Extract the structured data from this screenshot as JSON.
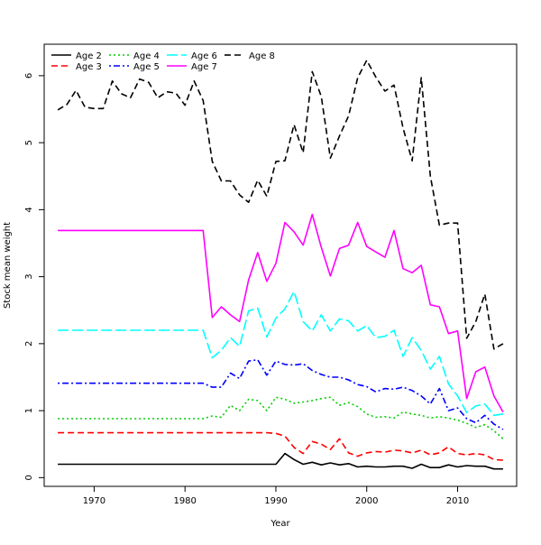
{
  "chart_data": {
    "type": "line",
    "title": "",
    "xlabel": "Year",
    "ylabel": "Stock mean weight",
    "xlim": [
      1964.5,
      2016.5
    ],
    "ylim": [
      -0.13,
      6.47
    ],
    "xticks": [
      1970,
      1980,
      1990,
      2000,
      2010
    ],
    "yticks": [
      0,
      1,
      2,
      3,
      4,
      5,
      6
    ],
    "grid": false,
    "legend_position": "top-left",
    "x": [
      1966,
      1967,
      1968,
      1969,
      1970,
      1971,
      1972,
      1973,
      1974,
      1975,
      1976,
      1977,
      1978,
      1979,
      1980,
      1981,
      1982,
      1983,
      1984,
      1985,
      1986,
      1987,
      1988,
      1989,
      1990,
      1991,
      1992,
      1993,
      1994,
      1995,
      1996,
      1997,
      1998,
      1999,
      2000,
      2001,
      2002,
      2003,
      2004,
      2005,
      2006,
      2007,
      2008,
      2009,
      2010,
      2011,
      2012,
      2013,
      2014,
      2015
    ],
    "series": [
      {
        "name": "Age 2",
        "color": "#000000",
        "dash": "solid",
        "values": [
          0.2,
          0.2,
          0.2,
          0.2,
          0.2,
          0.2,
          0.2,
          0.2,
          0.2,
          0.2,
          0.2,
          0.2,
          0.2,
          0.2,
          0.2,
          0.2,
          0.2,
          0.2,
          0.2,
          0.2,
          0.2,
          0.2,
          0.2,
          0.2,
          0.2,
          0.36,
          0.27,
          0.2,
          0.23,
          0.19,
          0.22,
          0.19,
          0.21,
          0.16,
          0.17,
          0.16,
          0.16,
          0.17,
          0.17,
          0.14,
          0.2,
          0.15,
          0.15,
          0.19,
          0.16,
          0.18,
          0.17,
          0.17,
          0.13,
          0.13
        ]
      },
      {
        "name": "Age 3",
        "color": "#ff0000",
        "dash": "dashed",
        "values": [
          0.67,
          0.67,
          0.67,
          0.67,
          0.67,
          0.67,
          0.67,
          0.67,
          0.67,
          0.67,
          0.67,
          0.67,
          0.67,
          0.67,
          0.67,
          0.67,
          0.67,
          0.67,
          0.67,
          0.67,
          0.67,
          0.67,
          0.67,
          0.67,
          0.66,
          0.62,
          0.45,
          0.36,
          0.54,
          0.5,
          0.42,
          0.58,
          0.37,
          0.32,
          0.37,
          0.39,
          0.38,
          0.41,
          0.4,
          0.37,
          0.41,
          0.34,
          0.37,
          0.46,
          0.36,
          0.34,
          0.36,
          0.34,
          0.27,
          0.26
        ]
      },
      {
        "name": "Age 4",
        "color": "#00cd00",
        "dash": "dotted",
        "values": [
          0.88,
          0.88,
          0.88,
          0.88,
          0.88,
          0.88,
          0.88,
          0.88,
          0.88,
          0.88,
          0.88,
          0.88,
          0.88,
          0.88,
          0.88,
          0.88,
          0.88,
          0.92,
          0.9,
          1.08,
          1.0,
          1.17,
          1.15,
          1.0,
          1.2,
          1.17,
          1.11,
          1.13,
          1.15,
          1.18,
          1.2,
          1.08,
          1.12,
          1.06,
          0.95,
          0.9,
          0.91,
          0.89,
          0.98,
          0.95,
          0.93,
          0.89,
          0.91,
          0.89,
          0.86,
          0.81,
          0.75,
          0.79,
          0.7,
          0.58
        ]
      },
      {
        "name": "Age 5",
        "color": "#0000ff",
        "dash": "dotdash",
        "values": [
          1.41,
          1.41,
          1.41,
          1.41,
          1.41,
          1.41,
          1.41,
          1.41,
          1.41,
          1.41,
          1.41,
          1.41,
          1.41,
          1.41,
          1.41,
          1.41,
          1.41,
          1.35,
          1.35,
          1.56,
          1.48,
          1.74,
          1.76,
          1.53,
          1.74,
          1.69,
          1.68,
          1.7,
          1.6,
          1.54,
          1.5,
          1.5,
          1.46,
          1.39,
          1.36,
          1.28,
          1.33,
          1.32,
          1.35,
          1.3,
          1.22,
          1.1,
          1.33,
          1.0,
          1.04,
          0.88,
          0.82,
          0.93,
          0.8,
          0.72
        ]
      },
      {
        "name": "Age 6",
        "color": "#00ffff",
        "dash": "longdash",
        "values": [
          2.2,
          2.2,
          2.2,
          2.2,
          2.2,
          2.2,
          2.2,
          2.2,
          2.2,
          2.2,
          2.2,
          2.2,
          2.2,
          2.2,
          2.2,
          2.2,
          2.2,
          1.79,
          1.9,
          2.09,
          1.96,
          2.49,
          2.53,
          2.1,
          2.38,
          2.52,
          2.78,
          2.33,
          2.19,
          2.43,
          2.19,
          2.37,
          2.34,
          2.19,
          2.27,
          2.09,
          2.11,
          2.2,
          1.81,
          2.09,
          1.9,
          1.62,
          1.81,
          1.4,
          1.22,
          0.97,
          1.07,
          1.1,
          0.93,
          0.95
        ]
      },
      {
        "name": "Age 7",
        "color": "#ff00ff",
        "dash": "solid",
        "values": [
          3.69,
          3.69,
          3.69,
          3.69,
          3.69,
          3.69,
          3.69,
          3.69,
          3.69,
          3.69,
          3.69,
          3.69,
          3.69,
          3.69,
          3.69,
          3.69,
          3.69,
          2.39,
          2.55,
          2.43,
          2.33,
          2.95,
          3.36,
          2.93,
          3.2,
          3.81,
          3.67,
          3.47,
          3.93,
          3.44,
          3.01,
          3.42,
          3.47,
          3.81,
          3.45,
          3.37,
          3.29,
          3.69,
          3.12,
          3.06,
          3.17,
          2.58,
          2.55,
          2.15,
          2.19,
          1.18,
          1.58,
          1.65,
          1.22,
          0.98
        ]
      },
      {
        "name": "Age 8",
        "color": "#000000",
        "dash": "dashed",
        "values": [
          5.49,
          5.57,
          5.78,
          5.53,
          5.51,
          5.51,
          5.92,
          5.73,
          5.67,
          5.95,
          5.9,
          5.67,
          5.76,
          5.74,
          5.56,
          5.92,
          5.63,
          4.72,
          4.43,
          4.43,
          4.22,
          4.11,
          4.44,
          4.2,
          4.72,
          4.73,
          5.27,
          4.85,
          6.06,
          5.69,
          4.77,
          5.1,
          5.4,
          5.97,
          6.23,
          5.98,
          5.77,
          5.86,
          5.22,
          4.73,
          5.97,
          4.5,
          3.77,
          3.8,
          3.8,
          2.08,
          2.33,
          2.74,
          1.92,
          2.0
        ]
      }
    ]
  }
}
